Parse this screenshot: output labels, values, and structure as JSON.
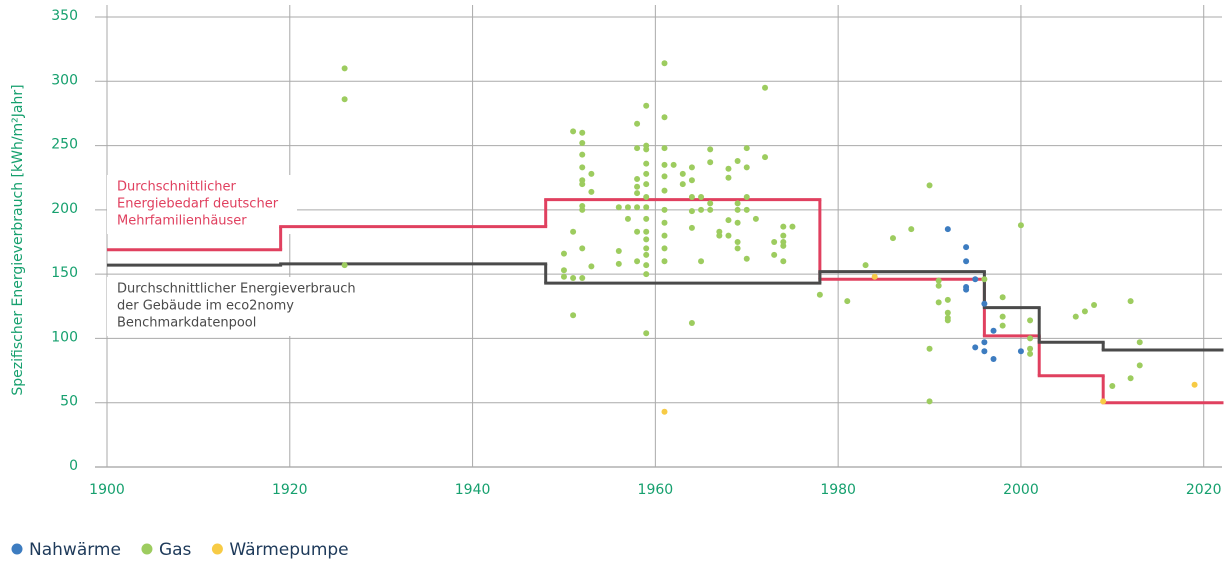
{
  "chart_data": {
    "type": "scatter",
    "y_label": "Spezifischer Energieverbrauch [kWh/m²Jahr]",
    "xlim": [
      1900,
      2022
    ],
    "ylim": [
      0,
      350
    ],
    "xticks": [
      1900,
      1920,
      1940,
      1960,
      1980,
      2000,
      2020
    ],
    "yticks": [
      0,
      50,
      100,
      150,
      200,
      250,
      300,
      350
    ],
    "grid": true,
    "legend": "bottom-left",
    "series": [
      {
        "name": "Nahwärme",
        "color": "#3d7cc0",
        "x": [
          1992,
          1994,
          1994,
          1994,
          1994,
          1995,
          1995,
          1996,
          1996,
          1996,
          1997,
          1997,
          2000
        ],
        "values": [
          185,
          171,
          160,
          140,
          138,
          146,
          93,
          127,
          97,
          90,
          106,
          84,
          90
        ]
      },
      {
        "name": "Gas",
        "color": "#9dcc5f",
        "x": [
          1926,
          1926,
          1926,
          1950,
          1950,
          1950,
          1951,
          1951,
          1951,
          1951,
          1952,
          1952,
          1952,
          1952,
          1952,
          1952,
          1952,
          1952,
          1952,
          1952,
          1953,
          1953,
          1953,
          1956,
          1956,
          1956,
          1957,
          1957,
          1958,
          1958,
          1958,
          1958,
          1958,
          1958,
          1958,
          1958,
          1959,
          1959,
          1959,
          1959,
          1959,
          1959,
          1959,
          1959,
          1959,
          1959,
          1959,
          1959,
          1959,
          1959,
          1959,
          1959,
          1961,
          1961,
          1961,
          1961,
          1961,
          1961,
          1961,
          1961,
          1961,
          1961,
          1961,
          1962,
          1963,
          1963,
          1964,
          1964,
          1964,
          1964,
          1964,
          1964,
          1965,
          1965,
          1965,
          1966,
          1966,
          1966,
          1966,
          1967,
          1967,
          1968,
          1968,
          1968,
          1968,
          1969,
          1969,
          1969,
          1969,
          1969,
          1969,
          1970,
          1970,
          1970,
          1970,
          1970,
          1971,
          1972,
          1972,
          1973,
          1973,
          1974,
          1974,
          1974,
          1974,
          1974,
          1975,
          1978,
          1981,
          1983,
          1986,
          1988,
          1990,
          1990,
          1990,
          1991,
          1991,
          1991,
          1992,
          1992,
          1992,
          1992,
          1996,
          1998,
          1998,
          1998,
          2000,
          2001,
          2001,
          2001,
          2001,
          2006,
          2007,
          2008,
          2010,
          2012,
          2012,
          2013,
          2013
        ],
        "values": [
          310,
          286,
          157,
          166,
          153,
          148,
          261,
          183,
          118,
          147,
          260,
          252,
          243,
          233,
          223,
          220,
          203,
          200,
          170,
          147,
          228,
          214,
          156,
          202,
          168,
          158,
          202,
          193,
          267,
          248,
          224,
          218,
          213,
          202,
          183,
          160,
          281,
          250,
          247,
          236,
          228,
          220,
          210,
          202,
          193,
          183,
          177,
          170,
          165,
          157,
          150,
          104,
          314,
          272,
          248,
          235,
          226,
          215,
          200,
          190,
          180,
          170,
          160,
          235,
          228,
          220,
          233,
          223,
          210,
          199,
          186,
          112,
          210,
          200,
          160,
          247,
          237,
          205,
          200,
          183,
          180,
          232,
          225,
          192,
          180,
          238,
          205,
          200,
          190,
          175,
          170,
          248,
          233,
          210,
          200,
          162,
          193,
          295,
          241,
          175,
          165,
          187,
          180,
          175,
          172,
          160,
          187,
          134,
          129,
          157,
          178,
          185,
          219,
          92,
          51,
          145,
          141,
          128,
          130,
          120,
          116,
          114,
          146,
          132,
          117,
          110,
          188,
          114,
          100,
          92,
          88,
          117,
          121,
          126,
          63,
          129,
          69,
          97,
          79
        ]
      },
      {
        "name": "Wärmepumpe",
        "color": "#f7cb45",
        "x": [
          1961,
          1984,
          2009,
          2019
        ],
        "values": [
          43,
          148,
          51,
          64
        ]
      }
    ],
    "step_lines": [
      {
        "color": "#e0405f",
        "edges": [
          1900,
          1919,
          1948,
          1978,
          1996,
          2002,
          2009,
          2022
        ],
        "values": [
          169,
          187,
          208,
          146,
          102,
          71,
          50
        ]
      },
      {
        "color": "#4a4a4a",
        "edges": [
          1900,
          1919,
          1948,
          1978,
          1996,
          2002,
          2009,
          2022
        ],
        "values": [
          157,
          158,
          143,
          152,
          124,
          97,
          91
        ]
      }
    ],
    "annotations": [
      {
        "color": "#e0405f",
        "lines": [
          "Durchschnittlicher",
          "Energiebedarf deutscher",
          "Mehrfamilienhäuser"
        ]
      },
      {
        "color": "#4a4a4a",
        "lines": [
          "Durchschnittlicher Energieverbrauch",
          "der Gebäude im eco2nomy",
          "Benchmarkdatenpool"
        ]
      }
    ]
  }
}
